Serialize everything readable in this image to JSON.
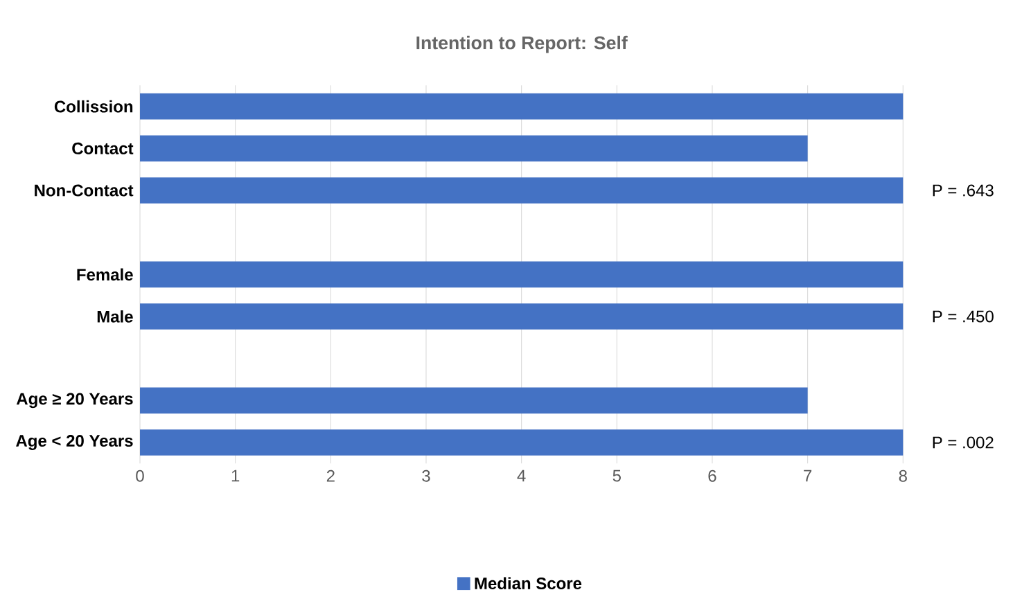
{
  "chart_data": {
    "type": "bar",
    "orientation": "horizontal",
    "title": "Intention to Report: Self",
    "categories": [
      "Collission",
      "Contact",
      "Non-Contact",
      null,
      "Female",
      "Male",
      null,
      "Age  ≥ 20 Years",
      "Age  < 20 Years"
    ],
    "series": [
      {
        "name": "Median Score",
        "color": "#4472c4",
        "values": [
          8,
          7,
          8,
          null,
          8,
          8,
          null,
          7,
          8
        ]
      }
    ],
    "xlim": [
      0,
      8
    ],
    "xticks": [
      0,
      1,
      2,
      3,
      4,
      5,
      6,
      7,
      8
    ],
    "grid": "x",
    "legend": "bottom",
    "annotations": [
      "P = .643",
      "P = .450",
      "P = .002"
    ]
  }
}
